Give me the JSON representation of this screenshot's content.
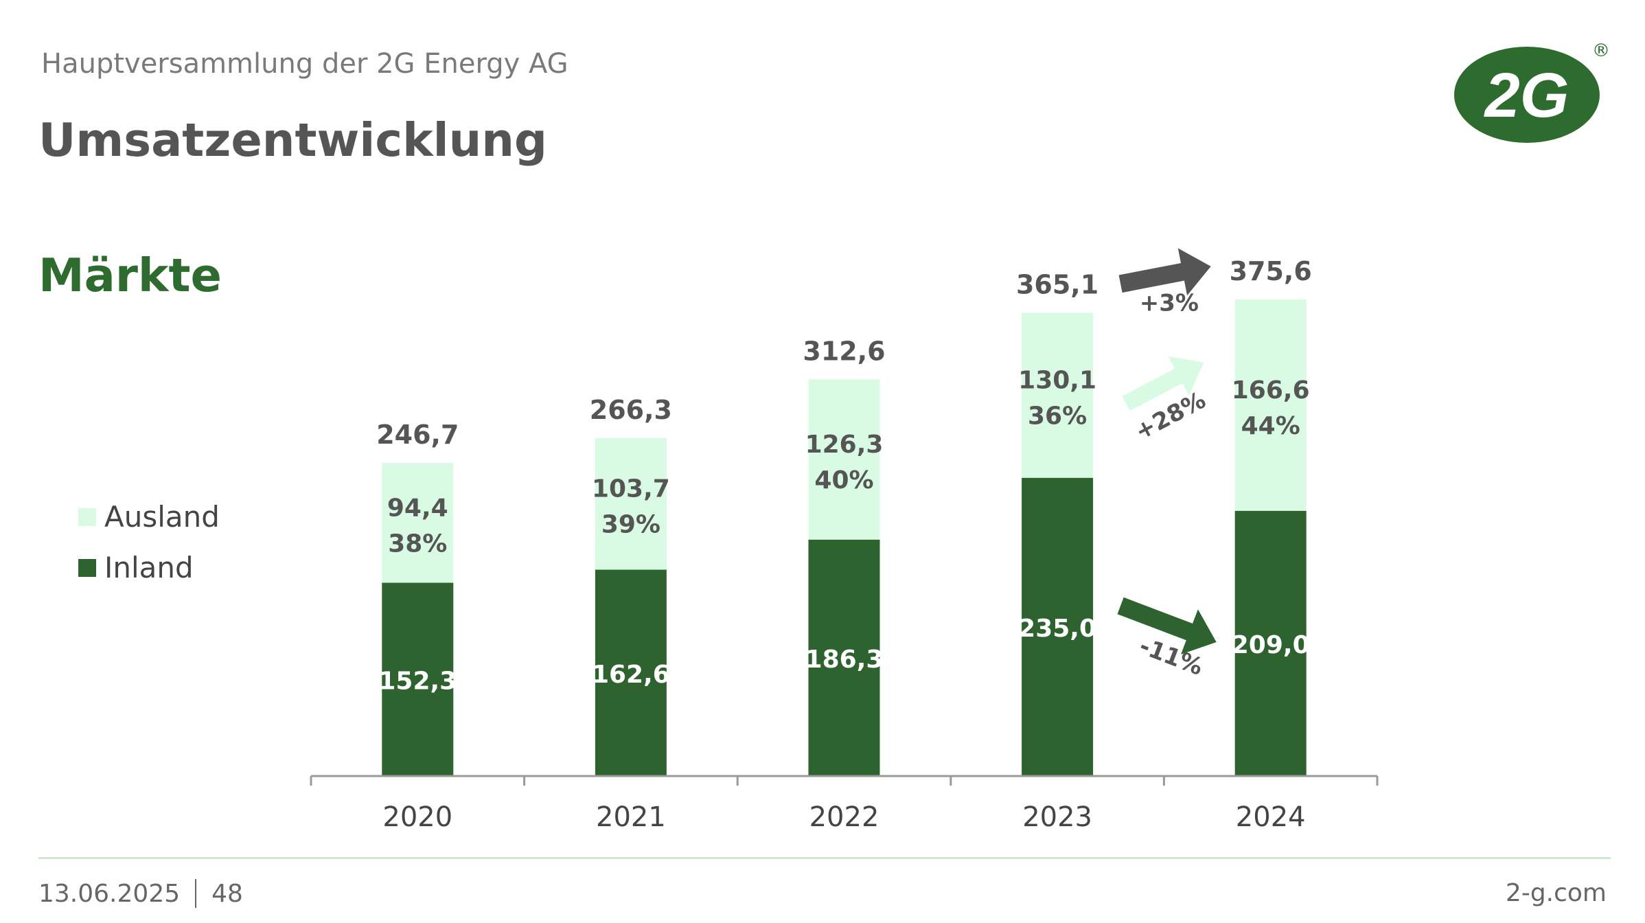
{
  "header": {
    "overline": "Hauptversammlung der 2G Energy AG",
    "title": "Umsatzentwicklung",
    "subtitle": "Märkte"
  },
  "logo": {
    "text": "2G",
    "registered": "®",
    "color": "#2e6b2e"
  },
  "legend": [
    {
      "label": "Ausland",
      "color": "#d9fbe3"
    },
    {
      "label": "Inland",
      "color": "#2e6330"
    }
  ],
  "chart_data": {
    "type": "bar",
    "stacked": true,
    "categories": [
      "2020",
      "2021",
      "2022",
      "2023",
      "2024"
    ],
    "series": [
      {
        "name": "Inland",
        "values": [
          152.3,
          162.6,
          186.3,
          235.0,
          209.0
        ],
        "labels": [
          "152,3",
          "162,6",
          "186,3",
          "235,0",
          "209,0"
        ],
        "color": "#2e6330"
      },
      {
        "name": "Ausland",
        "values": [
          94.4,
          103.7,
          126.3,
          130.1,
          166.6
        ],
        "labels": [
          "94,4",
          "103,7",
          "126,3",
          "130,1",
          "166,6"
        ],
        "share_labels": [
          "38%",
          "39%",
          "40%",
          "36%",
          "44%"
        ],
        "color": "#d9fbe3"
      }
    ],
    "totals": [
      246.7,
      266.3,
      312.6,
      365.1,
      375.6
    ],
    "total_labels": [
      "246,7",
      "266,3",
      "312,6",
      "365,1",
      "375,6"
    ],
    "annotations": [
      {
        "label": "+3%",
        "series": "total",
        "from": "2023",
        "to": "2024",
        "color": "#555555"
      },
      {
        "label": "+28%",
        "series": "Ausland",
        "from": "2023",
        "to": "2024",
        "color": "#d9fbe3"
      },
      {
        "label": "-11%",
        "series": "Inland",
        "from": "2023",
        "to": "2024",
        "color": "#2e6330"
      }
    ],
    "ylim": [
      0,
      400
    ],
    "grid": false,
    "legend_position": "left"
  },
  "footer": {
    "date": "13.06.2025",
    "page": "48",
    "url": "2-g.com"
  }
}
